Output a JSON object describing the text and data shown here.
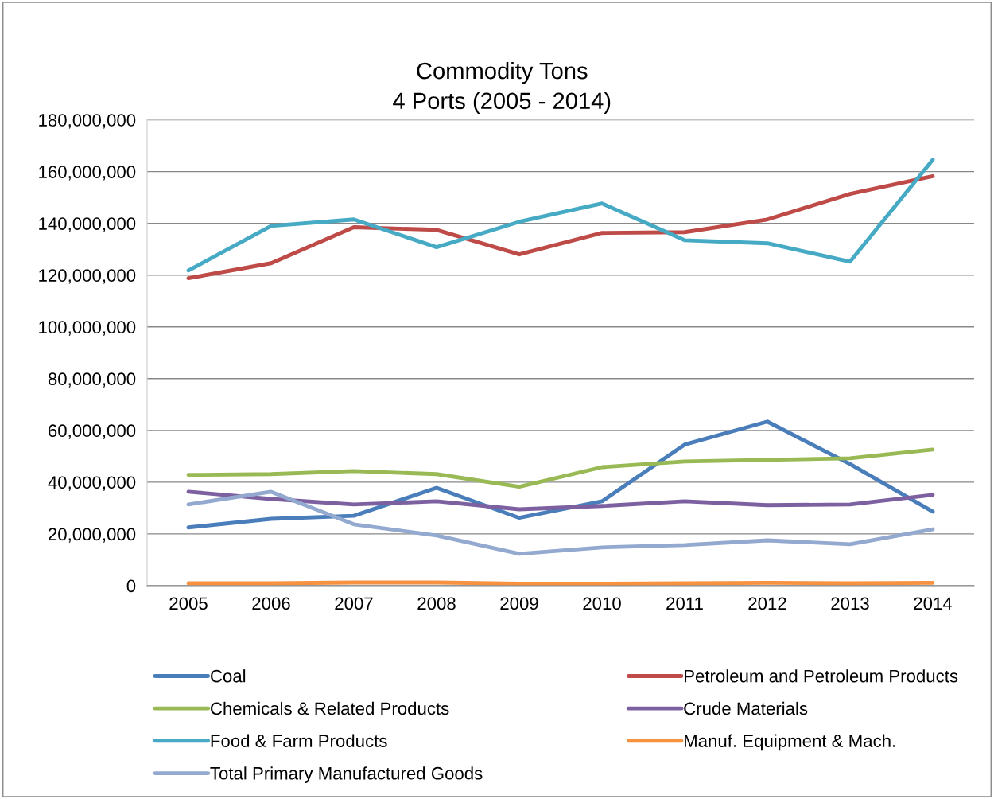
{
  "chart_data": {
    "type": "line",
    "title": "Commodity Tons\n4 Ports (2005 - 2014)",
    "categories": [
      "2005",
      "2006",
      "2007",
      "2008",
      "2009",
      "2010",
      "2011",
      "2012",
      "2013",
      "2014"
    ],
    "series": [
      {
        "name": "Coal",
        "color": "#4a7ebb",
        "values": [
          22500000,
          25800000,
          27000000,
          37800000,
          26200000,
          32600000,
          54500000,
          63400000,
          47000000,
          28600000
        ]
      },
      {
        "name": "Petroleum and Petroleum Products",
        "color": "#be4b48",
        "values": [
          118800000,
          124600000,
          138500000,
          137500000,
          128000000,
          136300000,
          136600000,
          141500000,
          151400000,
          158200000
        ]
      },
      {
        "name": "Chemicals & Related Products",
        "color": "#98b954",
        "values": [
          42800000,
          43100000,
          44300000,
          43100000,
          38200000,
          45800000,
          48000000,
          48600000,
          49200000,
          52600000
        ]
      },
      {
        "name": "Crude Materials",
        "color": "#7d60a0",
        "values": [
          36300000,
          33500000,
          31400000,
          32600000,
          29500000,
          30800000,
          32600000,
          31100000,
          31400000,
          35100000
        ]
      },
      {
        "name": "Food & Farm Products",
        "color": "#46aac5",
        "values": [
          121800000,
          139000000,
          141500000,
          130800000,
          140600000,
          147700000,
          133500000,
          132300000,
          125200000,
          164600000
        ]
      },
      {
        "name": "Manuf. Equipment & Mach.",
        "color": "#f69240",
        "values": [
          900000,
          900000,
          1200000,
          1200000,
          800000,
          800000,
          900000,
          1100000,
          900000,
          1100000
        ]
      },
      {
        "name": "Total Primary Manufactured Goods",
        "color": "#93a9cf",
        "values": [
          31400000,
          36300000,
          23700000,
          19400000,
          12300000,
          14800000,
          15700000,
          17500000,
          16000000,
          21800000
        ]
      }
    ],
    "ylim": [
      0,
      180000000
    ],
    "yticks": [
      {
        "value": 0,
        "label": "0"
      },
      {
        "value": 20000000,
        "label": "20,000,000"
      },
      {
        "value": 40000000,
        "label": "40,000,000"
      },
      {
        "value": 60000000,
        "label": "60,000,000"
      },
      {
        "value": 80000000,
        "label": "80,000,000"
      },
      {
        "value": 100000000,
        "label": "100,000,000"
      },
      {
        "value": 120000000,
        "label": "120,000,000"
      },
      {
        "value": 140000000,
        "label": "140,000,000"
      },
      {
        "value": 160000000,
        "label": "160,000,000"
      },
      {
        "value": 180000000,
        "label": "180,000,000"
      }
    ],
    "grid": "y",
    "legend": "bottom",
    "marker": "none",
    "line_style": "solid"
  }
}
